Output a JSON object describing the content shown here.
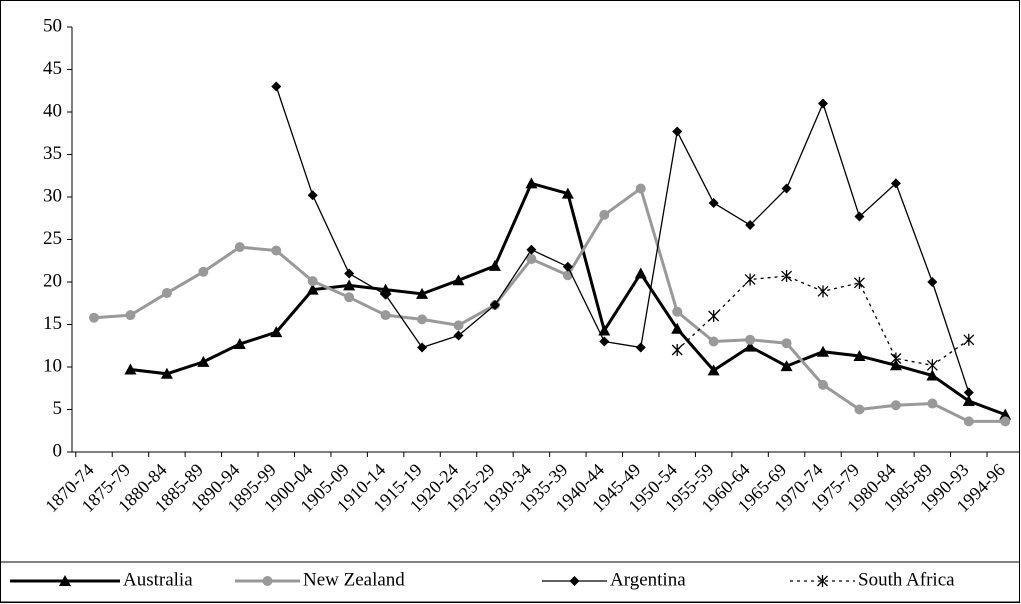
{
  "chart_data": {
    "type": "line",
    "categories": [
      "1870-74",
      "1875-79",
      "1880-84",
      "1885-89",
      "1890-94",
      "1895-99",
      "1900-04",
      "1905-09",
      "1910-14",
      "1915-19",
      "1920-24",
      "1925-29",
      "1930-34",
      "1935-39",
      "1940-44",
      "1945-49",
      "1950-54",
      "1955-59",
      "1960-64",
      "1965-69",
      "1970-74",
      "1975-79",
      "1980-84",
      "1985-89",
      "1990-93",
      "1994-96"
    ],
    "ylim": [
      0,
      50
    ],
    "yticks": [
      0,
      5,
      10,
      15,
      20,
      25,
      30,
      35,
      40,
      45,
      50
    ],
    "legend": "bottom",
    "series": [
      {
        "name": "Australia",
        "color": "#000000",
        "line_width": 3,
        "dash": "solid",
        "marker": "triangle",
        "values": [
          null,
          9.7,
          9.2,
          10.6,
          12.7,
          14.1,
          19.1,
          19.6,
          19.1,
          18.6,
          20.2,
          21.9,
          31.6,
          30.4,
          14.3,
          21,
          14.5,
          9.6,
          12.4,
          10.1,
          11.8,
          11.3,
          10.2,
          9,
          6,
          4.4
        ]
      },
      {
        "name": "New Zealand",
        "color": "#999999",
        "line_width": 3,
        "dash": "solid",
        "marker": "circle",
        "values": [
          15.8,
          16.1,
          18.7,
          21.2,
          24.1,
          23.7,
          20.1,
          18.2,
          16.1,
          15.6,
          14.9,
          17.3,
          22.7,
          20.8,
          27.9,
          31,
          16.5,
          13,
          13.2,
          12.8,
          7.9,
          5,
          5.5,
          5.7,
          3.6,
          3.6
        ]
      },
      {
        "name": "Argentina",
        "color": "#000000",
        "line_width": 1.3,
        "dash": "solid",
        "marker": "diamond",
        "values": [
          null,
          null,
          null,
          null,
          null,
          43,
          30.2,
          21,
          18.5,
          12.3,
          13.7,
          17.3,
          23.8,
          21.8,
          13,
          12.3,
          37.7,
          29.3,
          26.7,
          31,
          41,
          27.7,
          31.6,
          20,
          7,
          null
        ]
      },
      {
        "name": "South Africa",
        "color": "#000000",
        "line_width": 1.3,
        "dash": "dotted",
        "marker": "star",
        "values": [
          null,
          null,
          null,
          null,
          null,
          null,
          null,
          null,
          null,
          null,
          null,
          null,
          null,
          null,
          null,
          null,
          12,
          16,
          20.3,
          20.7,
          18.9,
          19.9,
          11,
          10.2,
          13.2,
          null
        ]
      }
    ]
  }
}
